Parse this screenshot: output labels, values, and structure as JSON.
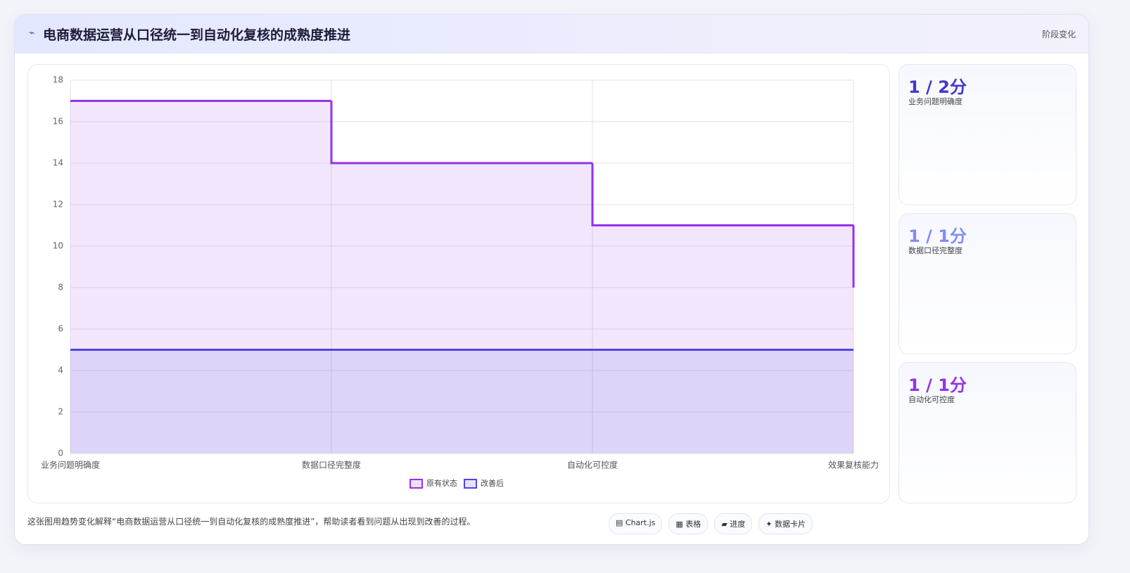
{
  "header": {
    "title": "电商数据运营从口径统一到自动化复核的成熟度推进",
    "tag": "阶段变化"
  },
  "chart_data": {
    "type": "line",
    "stepped": true,
    "categories": [
      "业务问题明确度",
      "数据口径完整度",
      "自动化可控度",
      "效果复核能力"
    ],
    "series": [
      {
        "name": "原有状态",
        "color": "#9333ea",
        "values": [
          17,
          14,
          11,
          8
        ]
      },
      {
        "name": "改善后",
        "color": "#4f46e5",
        "values": [
          5,
          5,
          5,
          5
        ]
      }
    ],
    "ylim": [
      0,
      18
    ],
    "yticks": [
      0,
      2,
      4,
      6,
      8,
      10,
      12,
      14,
      16,
      18
    ],
    "grid": true,
    "legend": "bottom"
  },
  "cards": [
    {
      "value": "1 / 2分",
      "label": "业务问题明确度",
      "color": "#4338ca"
    },
    {
      "value": "1 / 1分",
      "label": "数据口径完整度",
      "color": "#818cf8"
    },
    {
      "value": "1 / 1分",
      "label": "自动化可控度",
      "color": "#9333ea"
    }
  ],
  "footer": {
    "text": "这张图用趋势变化解释“电商数据运营从口径统一到自动化复核的成熟度推进”，帮助读者看到问题从出现到改善的过程。",
    "badges": [
      "▤ Chart.js",
      "▦ 表格",
      "▰ 进度",
      "✦ 数据卡片"
    ]
  }
}
